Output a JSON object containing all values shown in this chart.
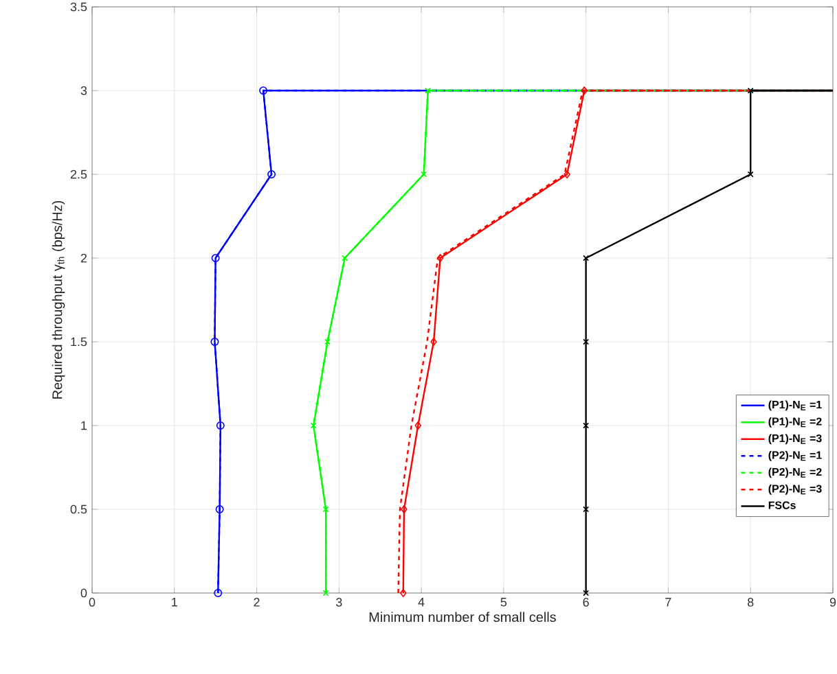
{
  "chart_data": {
    "type": "line",
    "xlabel": "Minimum number of small cells",
    "ylabel": "Required throughput γ$_{th}$ (bps/Hz)",
    "xlim": [
      0,
      9
    ],
    "ylim": [
      0,
      3.5
    ],
    "xticks": [
      0,
      1,
      2,
      3,
      4,
      5,
      6,
      7,
      8,
      9
    ],
    "yticks": [
      0,
      0.5,
      1,
      1.5,
      2,
      2.5,
      3,
      3.5
    ],
    "grid": true,
    "legend": "bottom right",
    "series": [
      {
        "name": "(P1)-N$_{E}$ =1",
        "color": "#0000ff",
        "marker": "circle",
        "line_style": "solid",
        "x": [
          1.53,
          1.55,
          1.56,
          1.49,
          1.5,
          2.18,
          2.08,
          9
        ],
        "values": [
          0,
          0.5,
          1,
          1.5,
          2,
          2.5,
          3,
          3
        ]
      },
      {
        "name": "(P1)-N$_{E}$ =2",
        "color": "#00ff00",
        "marker": "cross",
        "line_style": "solid",
        "x": [
          2.84,
          2.84,
          2.69,
          2.86,
          3.07,
          4.03,
          4.08,
          9
        ],
        "values": [
          0,
          0.5,
          1,
          1.5,
          2,
          2.5,
          3,
          3
        ]
      },
      {
        "name": "(P1)-N$_{E}$ =3",
        "color": "#ff0000",
        "marker": "diamond",
        "line_style": "solid",
        "x": [
          3.78,
          3.79,
          3.96,
          4.15,
          4.23,
          5.77,
          5.98,
          9
        ],
        "values": [
          0,
          0.5,
          1,
          1.5,
          2,
          2.5,
          3,
          3
        ]
      },
      {
        "name": "(P2)-N$_{E}$ =1",
        "color": "#0000ff",
        "marker": "none",
        "line_style": "dashed",
        "x": [
          1.53,
          1.55,
          1.56,
          1.49,
          1.5,
          2.18,
          2.08,
          9
        ],
        "values": [
          0,
          0.5,
          1,
          1.5,
          2,
          2.5,
          3,
          3
        ]
      },
      {
        "name": "(P2)-N$_{E}$ =2",
        "color": "#00ff00",
        "marker": "none",
        "line_style": "dashed",
        "x": [
          2.84,
          2.84,
          2.69,
          2.86,
          3.07,
          4.03,
          4.08,
          9
        ],
        "values": [
          0,
          0.5,
          1,
          1.5,
          2,
          2.5,
          3,
          3
        ]
      },
      {
        "name": "(P2)-N$_{E}$ =3",
        "color": "#ff0000",
        "marker": "none",
        "line_style": "dashed",
        "x": [
          3.72,
          3.74,
          3.88,
          4.07,
          4.2,
          5.74,
          5.96,
          9
        ],
        "values": [
          0,
          0.5,
          1,
          1.5,
          2,
          2.5,
          3,
          3
        ]
      },
      {
        "name": "FSCs",
        "color": "#000000",
        "marker": "cross",
        "line_style": "solid",
        "x": [
          6,
          6,
          6,
          6,
          6,
          8,
          8,
          9
        ],
        "values": [
          0,
          0.5,
          1,
          1.5,
          2,
          2.5,
          3,
          3
        ]
      }
    ]
  }
}
